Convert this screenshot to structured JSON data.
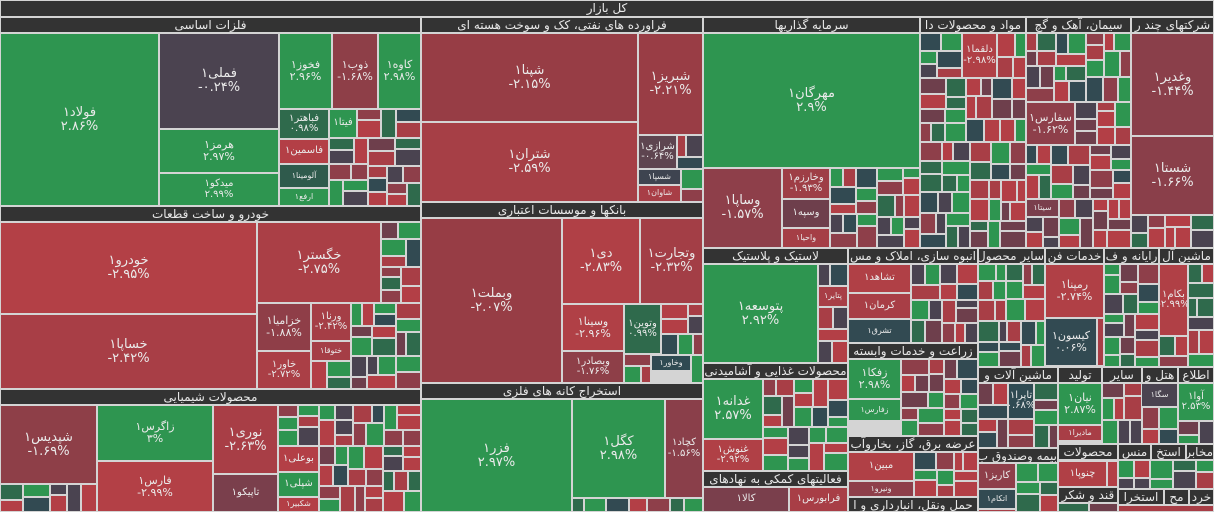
{
  "colors": {
    "green": "#2e9550",
    "dark_green": "#2f6a4c",
    "red": "#b33f46",
    "dark_red": "#8e3f4a",
    "purple": "#4a4350",
    "slate": "#324a52",
    "header_bg": "#333333"
  },
  "sectors": [
    {
      "title": "کل بازار"
    },
    {
      "title": "فلزات اساسی"
    },
    {
      "title": "خودرو و ساخت قطعات"
    },
    {
      "title": "محصولات شیمیایی"
    },
    {
      "title": "فراورده های نفتی، کک و سوخت هسته ای"
    },
    {
      "title": "بانکها و موسسات اعتباری"
    },
    {
      "title": "استخراج کانه های فلزی"
    },
    {
      "title": "سرمایه گذاریها"
    },
    {
      "title": "مواد و محصولات دا"
    },
    {
      "title": "سیمان، آهک و گچ"
    },
    {
      "title": "شرکتهای چند ر"
    },
    {
      "title": "لاستیک و پلاستیک"
    },
    {
      "title": "محصولات غذایی و آشامیدنی"
    },
    {
      "title": "فعالیتهای کمکی به نهادهای"
    },
    {
      "title": "انبوه سازی، املاک و مس"
    },
    {
      "title": "زراعت و خدمات وابسته"
    },
    {
      "title": "عرضه برق، گاز، بخاروآب"
    },
    {
      "title": "حمل ونقل، انبارداری و ا"
    },
    {
      "title": "سایر محصول"
    },
    {
      "title": "خدمات فن"
    },
    {
      "title": "رایانه و ف"
    },
    {
      "title": "ماشین آل"
    },
    {
      "title": "ماشین آلات و"
    },
    {
      "title": "تولید"
    },
    {
      "title": "سایر"
    },
    {
      "title": "هتل و"
    },
    {
      "title": "اطلاع"
    },
    {
      "title": "بیمه وصندوق ب"
    },
    {
      "title": "محصولات"
    },
    {
      "title": "منس"
    },
    {
      "title": "استخ"
    },
    {
      "title": "مخابرات"
    },
    {
      "title": "قند و شکر"
    },
    {
      "title": "استخرا"
    },
    {
      "title": "مح"
    },
    {
      "title": "خرد"
    }
  ],
  "tiles": [
    {
      "symbol": "فولاد۱",
      "change": "۲.۸۶%",
      "color": "#2e9550"
    },
    {
      "symbol": "فملی۱",
      "change": "-۰.۲۴%",
      "color": "#4b4350"
    },
    {
      "symbol": "هرمز۱",
      "change": "۲.۹۷%",
      "color": "#2e9550"
    },
    {
      "symbol": "میدکو۱",
      "change": "۲.۹۹%",
      "color": "#2e9550"
    },
    {
      "symbol": "فخوز۱",
      "change": "۲.۹۶%",
      "color": "#2e9550"
    },
    {
      "symbol": "ذوب۱",
      "change": "-۱.۶۸%",
      "color": "#8e3f48"
    },
    {
      "symbol": "کاوه۱",
      "change": "۲.۹۸%",
      "color": "#2e9550"
    },
    {
      "symbol": "فباهتر۱",
      "change": "۰.۹۸%",
      "color": "#2f6a4c"
    },
    {
      "symbol": "فاسمین۱",
      "change": "",
      "color": "#b33f46"
    },
    {
      "symbol": "آلومینا۱",
      "change": "",
      "color": "#2f5a4c"
    },
    {
      "symbol": "ارفع۱",
      "change": "",
      "color": "#2e9550"
    },
    {
      "symbol": "فیتا۱",
      "change": "",
      "color": "#2e9550"
    },
    {
      "symbol": "خودرو۱",
      "change": "-۲.۹۵%",
      "color": "#b34046"
    },
    {
      "symbol": "خساپا۱",
      "change": "-۲.۴۲%",
      "color": "#a83e46"
    },
    {
      "symbol": "خگستر۱",
      "change": "-۲.۷۵%",
      "color": "#aa3f46"
    },
    {
      "symbol": "خزامیا۱",
      "change": "-۱.۸۸%",
      "color": "#8f3e48"
    },
    {
      "symbol": "خاور۱",
      "change": "-۲.۷۲%",
      "color": "#aa3f46"
    },
    {
      "symbol": "ورنا۱",
      "change": "-۲.۴۲%",
      "color": "#a53e46"
    },
    {
      "symbol": "ختوقا۱",
      "change": "",
      "color": "#a53e46"
    },
    {
      "symbol": "شپدیس۱",
      "change": "-۱.۶۹%",
      "color": "#8e3f48"
    },
    {
      "symbol": "زاگرس۱",
      "change": "۳%",
      "color": "#2e9550"
    },
    {
      "symbol": "فارس۱",
      "change": "-۲.۹۹%",
      "color": "#b34046"
    },
    {
      "symbol": "نوری۱",
      "change": "-۲.۶۳%",
      "color": "#a83e46"
    },
    {
      "symbol": "تاپیکو۱",
      "change": "",
      "color": "#7a3f4c"
    },
    {
      "symbol": "بوعلی۱",
      "change": "",
      "color": "#b33f46"
    },
    {
      "symbol": "شپلی۱",
      "change": "",
      "color": "#2e9550"
    },
    {
      "symbol": "شکبیر۱",
      "change": "",
      "color": "#b33f46"
    },
    {
      "symbol": "شپنا۱",
      "change": "-۲.۱۵%",
      "color": "#973d45"
    },
    {
      "symbol": "شتران۱",
      "change": "-۲.۵۹%",
      "color": "#a63f46"
    },
    {
      "symbol": "شبریز۱",
      "change": "-۲.۲۱%",
      "color": "#993d45"
    },
    {
      "symbol": "شرازی۱",
      "change": "-۰.۶۴%",
      "color": "#5e4550"
    },
    {
      "symbol": "شسپا۱",
      "change": "",
      "color": "#3e4450"
    },
    {
      "symbol": "شاوان۱",
      "change": "",
      "color": "#a83e46"
    },
    {
      "symbol": "وبملت۱",
      "change": "-۲.۰۷%",
      "color": "#973d45"
    },
    {
      "symbol": "دی۱",
      "change": "-۲.۸۳%",
      "color": "#b04046"
    },
    {
      "symbol": "وتجارت۱",
      "change": "-۲.۳۲%",
      "color": "#a33e46"
    },
    {
      "symbol": "وسینا۱",
      "change": "-۲.۹۶%",
      "color": "#b04046"
    },
    {
      "symbol": "وبصادر۱",
      "change": "-۱.۷۶%",
      "color": "#8e3f48"
    },
    {
      "symbol": "وتوین۱",
      "change": "۰.۹۹%",
      "color": "#2f6a4c"
    },
    {
      "symbol": "وخاور۱",
      "change": "",
      "color": "#2f4a52"
    },
    {
      "symbol": "فزر۱",
      "change": "۲.۹۷%",
      "color": "#2e9550"
    },
    {
      "symbol": "کگل۱",
      "change": "۲.۹۸%",
      "color": "#2e9550"
    },
    {
      "symbol": "کچاد۱",
      "change": "-۱.۵۶%",
      "color": "#8a3f4a"
    },
    {
      "symbol": "مهرگان۱",
      "change": "۲.۹%",
      "color": "#2e9550"
    },
    {
      "symbol": "وساپا۱",
      "change": "-۱.۵۷%",
      "color": "#8e3f4a"
    },
    {
      "symbol": "وخارزم۱",
      "change": "-۱.۹۳%",
      "color": "#9e3e46"
    },
    {
      "symbol": "وسپه۱",
      "change": "",
      "color": "#6e3f4c"
    },
    {
      "symbol": "واحیا۱",
      "change": "",
      "color": "#a53e46"
    },
    {
      "symbol": "پتوسعه۱",
      "change": "۲.۹۲%",
      "color": "#2e9550"
    },
    {
      "symbol": "پتایر۱",
      "change": "",
      "color": "#a83e46"
    },
    {
      "symbol": "غدانه۱",
      "change": "۲.۵۷%",
      "color": "#2e9550"
    },
    {
      "symbol": "غنوش۱",
      "change": "-۲.۹۲%",
      "color": "#b04046"
    },
    {
      "symbol": "کالا۱",
      "change": "",
      "color": "#7a3f4c"
    },
    {
      "symbol": "فرابورس۱",
      "change": "",
      "color": "#a83e46"
    },
    {
      "symbol": "تشاهد۱",
      "change": "",
      "color": "#b04046"
    },
    {
      "symbol": "کرمان۱",
      "change": "",
      "color": "#a83e46"
    },
    {
      "symbol": "تشرق۱",
      "change": "",
      "color": "#324a52"
    },
    {
      "symbol": "زفکا۱",
      "change": "۲.۹۸%",
      "color": "#2e9550"
    },
    {
      "symbol": "زفارس۱",
      "change": "",
      "color": "#2e9550"
    },
    {
      "symbol": "مبین۱",
      "change": "",
      "color": "#b04046"
    },
    {
      "symbol": "ونیرو۱",
      "change": "",
      "color": "#8e3f4a"
    },
    {
      "symbol": "دلقما۱",
      "change": "-۲.۹۸%",
      "color": "#b04046"
    },
    {
      "symbol": "سفارس۱",
      "change": "-۱.۶۲%",
      "color": "#8e3f4a"
    },
    {
      "symbol": "سیتا۱",
      "change": "",
      "color": "#7a3f4c"
    },
    {
      "symbol": "وغدیر۱",
      "change": "-۱.۴۴%",
      "color": "#8a3f4a"
    },
    {
      "symbol": "شستا۱",
      "change": "-۱.۶۶%",
      "color": "#8a3f4a"
    },
    {
      "symbol": "رمپنا۱",
      "change": "-۲.۷۴%",
      "color": "#b04046"
    },
    {
      "symbol": "کیسون۱",
      "change": "۰.۰۶%",
      "color": "#324a52"
    },
    {
      "symbol": "بکام۱",
      "change": "-۲.۹۹%",
      "color": "#b04046"
    },
    {
      "symbol": "تاپرا۱",
      "change": "۰.۶۸%",
      "color": "#2f4a52"
    },
    {
      "symbol": "نیان۱",
      "change": "۲.۸۷%",
      "color": "#2e9550"
    },
    {
      "symbol": "مادیرا۱",
      "change": "",
      "color": "#a83e46"
    },
    {
      "symbol": "سگا۱",
      "change": "",
      "color": "#4a4350"
    },
    {
      "symbol": "آوا۱",
      "change": "۲.۵۳%",
      "color": "#2e9550"
    },
    {
      "symbol": "کاریز۱",
      "change": "",
      "color": "#8e3f4a"
    },
    {
      "symbol": "اتکام۱",
      "change": "",
      "color": "#324a52"
    },
    {
      "symbol": "چنوپا۱",
      "change": "",
      "color": "#b04046"
    }
  ],
  "filler_palette": [
    "#2e9550",
    "#2f6a4c",
    "#b33f46",
    "#8e3f4a",
    "#4a4350",
    "#324a52",
    "#a83e46",
    "#6e3f4c",
    "#2e9550",
    "#b33f46"
  ]
}
